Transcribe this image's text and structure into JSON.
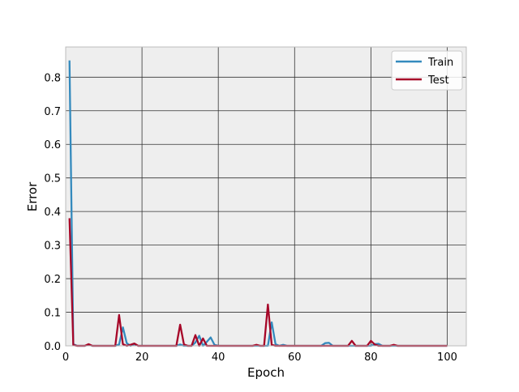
{
  "chart_data": {
    "type": "line",
    "xlabel": "Epoch",
    "ylabel": "Error",
    "xlim": [
      0,
      105
    ],
    "ylim": [
      0,
      0.89
    ],
    "xticks": [
      0,
      20,
      40,
      60,
      80,
      100
    ],
    "yticks": [
      0.0,
      0.1,
      0.2,
      0.3,
      0.4,
      0.5,
      0.6,
      0.7,
      0.8
    ],
    "ytick_labels": [
      "0.0",
      "0.1",
      "0.2",
      "0.3",
      "0.4",
      "0.5",
      "0.6",
      "0.7",
      "0.8"
    ],
    "grid": true,
    "legend_position": "top-right",
    "series": [
      {
        "name": "Train",
        "color": "#348abd",
        "points": [
          [
            1,
            0.85
          ],
          [
            2,
            0.005
          ],
          [
            3,
            0.0
          ],
          [
            4,
            0.0
          ],
          [
            5,
            0.0
          ],
          [
            6,
            0.003
          ],
          [
            7,
            0.0
          ],
          [
            8,
            0.0
          ],
          [
            9,
            0.0
          ],
          [
            10,
            0.0
          ],
          [
            11,
            0.0
          ],
          [
            12,
            0.0
          ],
          [
            13,
            0.0
          ],
          [
            14,
            0.004
          ],
          [
            15,
            0.055
          ],
          [
            16,
            0.008
          ],
          [
            17,
            0.0
          ],
          [
            18,
            0.005
          ],
          [
            19,
            0.0
          ],
          [
            20,
            0.0
          ],
          [
            21,
            0.0
          ],
          [
            22,
            0.0
          ],
          [
            23,
            0.0
          ],
          [
            24,
            0.0
          ],
          [
            25,
            0.0
          ],
          [
            26,
            0.0
          ],
          [
            27,
            0.0
          ],
          [
            28,
            0.0
          ],
          [
            29,
            0.0
          ],
          [
            30,
            0.004
          ],
          [
            31,
            0.0
          ],
          [
            32,
            0.0
          ],
          [
            33,
            0.0
          ],
          [
            34,
            0.01
          ],
          [
            35,
            0.03
          ],
          [
            36,
            0.0
          ],
          [
            37,
            0.012
          ],
          [
            38,
            0.025
          ],
          [
            39,
            0.003
          ],
          [
            40,
            0.0
          ],
          [
            41,
            0.0
          ],
          [
            42,
            0.0
          ],
          [
            43,
            0.0
          ],
          [
            44,
            0.0
          ],
          [
            45,
            0.0
          ],
          [
            46,
            0.0
          ],
          [
            47,
            0.0
          ],
          [
            48,
            0.0
          ],
          [
            49,
            0.0
          ],
          [
            50,
            0.0
          ],
          [
            51,
            0.0
          ],
          [
            52,
            0.0
          ],
          [
            53,
            0.0
          ],
          [
            54,
            0.07
          ],
          [
            55,
            0.005
          ],
          [
            56,
            0.0
          ],
          [
            57,
            0.003
          ],
          [
            58,
            0.0
          ],
          [
            59,
            0.0
          ],
          [
            60,
            0.0
          ],
          [
            61,
            0.0
          ],
          [
            62,
            0.0
          ],
          [
            63,
            0.0
          ],
          [
            64,
            0.0
          ],
          [
            65,
            0.0
          ],
          [
            66,
            0.0
          ],
          [
            67,
            0.0
          ],
          [
            68,
            0.008
          ],
          [
            69,
            0.009
          ],
          [
            70,
            0.0
          ],
          [
            71,
            0.0
          ],
          [
            72,
            0.0
          ],
          [
            73,
            0.0
          ],
          [
            74,
            0.0
          ],
          [
            75,
            0.0
          ],
          [
            76,
            0.0
          ],
          [
            77,
            0.0
          ],
          [
            78,
            0.0
          ],
          [
            79,
            0.0
          ],
          [
            80,
            0.0
          ],
          [
            81,
            0.005
          ],
          [
            82,
            0.006
          ],
          [
            83,
            0.0
          ],
          [
            84,
            0.0
          ],
          [
            85,
            0.0
          ],
          [
            86,
            0.0
          ],
          [
            87,
            0.0
          ],
          [
            88,
            0.0
          ],
          [
            89,
            0.0
          ],
          [
            90,
            0.0
          ],
          [
            91,
            0.0
          ],
          [
            92,
            0.0
          ],
          [
            93,
            0.0
          ],
          [
            94,
            0.0
          ],
          [
            95,
            0.0
          ],
          [
            96,
            0.0
          ],
          [
            97,
            0.0
          ],
          [
            98,
            0.0
          ],
          [
            99,
            0.0
          ],
          [
            100,
            0.0
          ]
        ]
      },
      {
        "name": "Test",
        "color": "#a60628",
        "points": [
          [
            1,
            0.38
          ],
          [
            2,
            0.002
          ],
          [
            3,
            0.0
          ],
          [
            4,
            0.0
          ],
          [
            5,
            0.0
          ],
          [
            6,
            0.005
          ],
          [
            7,
            0.0
          ],
          [
            8,
            0.0
          ],
          [
            9,
            0.0
          ],
          [
            10,
            0.0
          ],
          [
            11,
            0.0
          ],
          [
            12,
            0.0
          ],
          [
            13,
            0.0
          ],
          [
            14,
            0.092
          ],
          [
            15,
            0.005
          ],
          [
            16,
            0.0
          ],
          [
            17,
            0.003
          ],
          [
            18,
            0.007
          ],
          [
            19,
            0.0
          ],
          [
            20,
            0.0
          ],
          [
            21,
            0.0
          ],
          [
            22,
            0.0
          ],
          [
            23,
            0.0
          ],
          [
            24,
            0.0
          ],
          [
            25,
            0.0
          ],
          [
            26,
            0.0
          ],
          [
            27,
            0.0
          ],
          [
            28,
            0.0
          ],
          [
            29,
            0.0
          ],
          [
            30,
            0.063
          ],
          [
            31,
            0.004
          ],
          [
            32,
            0.0
          ],
          [
            33,
            0.0
          ],
          [
            34,
            0.032
          ],
          [
            35,
            0.0
          ],
          [
            36,
            0.022
          ],
          [
            37,
            0.0
          ],
          [
            38,
            0.0
          ],
          [
            39,
            0.0
          ],
          [
            40,
            0.0
          ],
          [
            41,
            0.0
          ],
          [
            42,
            0.0
          ],
          [
            43,
            0.0
          ],
          [
            44,
            0.0
          ],
          [
            45,
            0.0
          ],
          [
            46,
            0.0
          ],
          [
            47,
            0.0
          ],
          [
            48,
            0.0
          ],
          [
            49,
            0.0
          ],
          [
            50,
            0.003
          ],
          [
            51,
            0.0
          ],
          [
            52,
            0.0
          ],
          [
            53,
            0.123
          ],
          [
            54,
            0.003
          ],
          [
            55,
            0.0
          ],
          [
            56,
            0.0
          ],
          [
            57,
            0.0
          ],
          [
            58,
            0.0
          ],
          [
            59,
            0.0
          ],
          [
            60,
            0.0
          ],
          [
            61,
            0.0
          ],
          [
            62,
            0.0
          ],
          [
            63,
            0.0
          ],
          [
            64,
            0.0
          ],
          [
            65,
            0.0
          ],
          [
            66,
            0.0
          ],
          [
            67,
            0.0
          ],
          [
            68,
            0.0
          ],
          [
            69,
            0.0
          ],
          [
            70,
            0.0
          ],
          [
            71,
            0.0
          ],
          [
            72,
            0.0
          ],
          [
            73,
            0.0
          ],
          [
            74,
            0.0
          ],
          [
            75,
            0.015
          ],
          [
            76,
            0.0
          ],
          [
            77,
            0.0
          ],
          [
            78,
            0.0
          ],
          [
            79,
            0.0
          ],
          [
            80,
            0.015
          ],
          [
            81,
            0.004
          ],
          [
            82,
            0.0
          ],
          [
            83,
            0.0
          ],
          [
            84,
            0.0
          ],
          [
            85,
            0.0
          ],
          [
            86,
            0.003
          ],
          [
            87,
            0.0
          ],
          [
            88,
            0.0
          ],
          [
            89,
            0.0
          ],
          [
            90,
            0.0
          ],
          [
            91,
            0.0
          ],
          [
            92,
            0.0
          ],
          [
            93,
            0.0
          ],
          [
            94,
            0.0
          ],
          [
            95,
            0.0
          ],
          [
            96,
            0.0
          ],
          [
            97,
            0.0
          ],
          [
            98,
            0.0
          ],
          [
            99,
            0.0
          ],
          [
            100,
            0.0
          ]
        ]
      }
    ]
  }
}
